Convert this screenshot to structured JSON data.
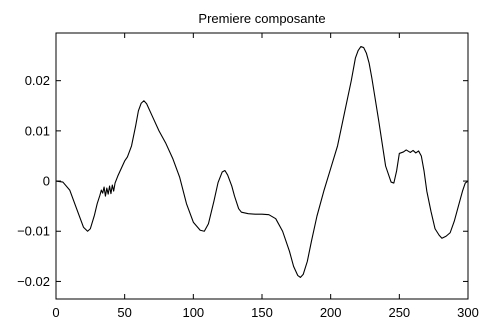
{
  "chart_data": {
    "type": "line",
    "title": "Premiere composante",
    "xlabel": "",
    "ylabel": "",
    "xlim": [
      0,
      300
    ],
    "ylim": [
      -0.0235,
      0.0295
    ],
    "grid": false,
    "legend": "none",
    "xticks": [
      0,
      50,
      100,
      150,
      200,
      250,
      300
    ],
    "xtick_labels": [
      "0",
      "50",
      "100",
      "150",
      "200",
      "250",
      "300"
    ],
    "yticks": [
      -0.02,
      -0.01,
      0,
      0.01,
      0.02
    ],
    "ytick_labels": [
      "−0.02",
      "−0.01",
      "0",
      "0.01",
      "0.02"
    ],
    "line_color": "#000000",
    "series": [
      {
        "x": [
          0,
          5,
          10,
          15,
          20,
          23,
          25,
          28,
          30,
          32,
          33,
          34,
          35,
          36,
          37,
          38,
          39,
          40,
          41,
          42,
          43,
          45,
          48,
          50,
          52,
          55,
          58,
          60,
          62,
          64,
          66,
          70,
          75,
          80,
          85,
          90,
          95,
          100,
          105,
          108,
          111,
          115,
          118,
          121,
          123,
          125,
          128,
          130,
          133,
          135,
          140,
          145,
          150,
          155,
          160,
          165,
          170,
          173,
          176,
          178,
          180,
          183,
          186,
          190,
          195,
          200,
          205,
          210,
          215,
          218,
          220,
          222,
          224,
          226,
          228,
          230,
          235,
          240,
          244,
          246,
          248,
          250,
          253,
          255,
          258,
          260,
          262,
          264,
          266,
          268,
          270,
          273,
          276,
          279,
          281,
          284,
          287,
          290,
          293,
          296,
          298,
          300
        ],
        "y": [
          0,
          -0.0002,
          -0.0018,
          -0.0055,
          -0.0092,
          -0.01,
          -0.0095,
          -0.0068,
          -0.0045,
          -0.0028,
          -0.0018,
          -0.0024,
          -0.0012,
          -0.003,
          -0.0014,
          -0.0026,
          -0.001,
          -0.0025,
          -0.0008,
          -0.002,
          -0.0004,
          0.001,
          0.0028,
          0.004,
          0.0048,
          0.007,
          0.011,
          0.014,
          0.0155,
          0.016,
          0.0154,
          0.013,
          0.01,
          0.0075,
          0.0045,
          0.0008,
          -0.0045,
          -0.0082,
          -0.0098,
          -0.01,
          -0.0085,
          -0.004,
          -0.0003,
          0.0018,
          0.0021,
          0.0012,
          -0.001,
          -0.003,
          -0.0055,
          -0.0062,
          -0.0065,
          -0.0066,
          -0.0066,
          -0.0067,
          -0.0075,
          -0.01,
          -0.014,
          -0.017,
          -0.0188,
          -0.0192,
          -0.0186,
          -0.016,
          -0.012,
          -0.007,
          -0.002,
          0.0025,
          0.007,
          0.0135,
          0.02,
          0.0245,
          0.026,
          0.0268,
          0.0266,
          0.0255,
          0.0235,
          0.0205,
          0.012,
          0.003,
          -0.0002,
          -0.0004,
          0.002,
          0.0055,
          0.0058,
          0.0062,
          0.0057,
          0.0061,
          0.0056,
          0.006,
          0.005,
          0.002,
          -0.002,
          -0.006,
          -0.0095,
          -0.0108,
          -0.0114,
          -0.011,
          -0.0103,
          -0.008,
          -0.005,
          -0.002,
          -0.0004,
          0.0
        ]
      }
    ]
  }
}
